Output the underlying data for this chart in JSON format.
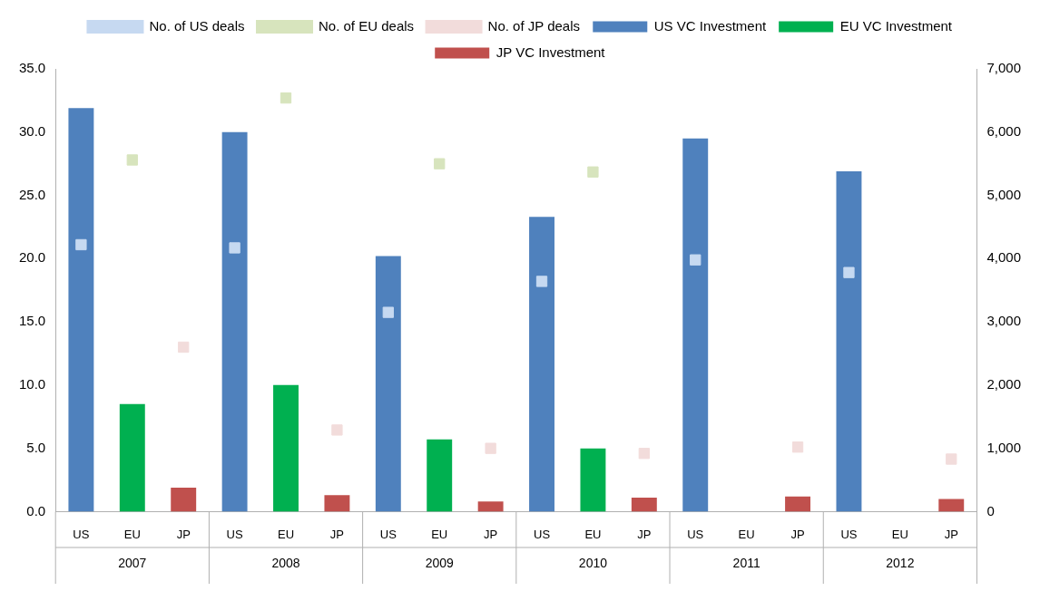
{
  "chart_data": {
    "type": "bar",
    "categories": [
      "US",
      "EU",
      "JP",
      "US",
      "EU",
      "JP",
      "US",
      "EU",
      "JP",
      "US",
      "EU",
      "JP",
      "US",
      "EU",
      "JP",
      "US",
      "EU",
      "JP"
    ],
    "series": [
      {
        "name": "US VC Investment",
        "color": "#4f81bd",
        "values": [
          31.9,
          null,
          null,
          30.0,
          null,
          null,
          20.2,
          null,
          null,
          23.3,
          null,
          null,
          29.5,
          null,
          null,
          26.9,
          null,
          null
        ]
      },
      {
        "name": "No. of US deals",
        "type": "scatter",
        "axis": "y2",
        "marker": "square",
        "color": "#c6d9f1",
        "values": [
          4220,
          null,
          null,
          4170,
          null,
          null,
          3150,
          null,
          null,
          3640,
          null,
          null,
          3980,
          null,
          null,
          3780,
          null,
          null
        ]
      },
      {
        "name": "EU VC Investment",
        "color": "#00b050",
        "values": [
          null,
          8.5,
          null,
          null,
          10.0,
          null,
          null,
          5.7,
          null,
          null,
          5.0,
          null,
          null,
          null,
          null,
          null,
          null,
          null
        ]
      },
      {
        "name": "No. of EU deals",
        "type": "scatter",
        "axis": "y2",
        "marker": "square",
        "color": "#d7e4bd",
        "values": [
          null,
          5560,
          null,
          null,
          6540,
          null,
          null,
          5500,
          null,
          null,
          5370,
          null,
          null,
          null,
          null,
          null,
          null,
          null
        ]
      },
      {
        "name": "JP VC Investment",
        "color": "#c0504d",
        "values": [
          null,
          null,
          1.9,
          null,
          null,
          1.3,
          null,
          null,
          0.8,
          null,
          null,
          1.1,
          null,
          null,
          1.2,
          null,
          null,
          1.0
        ]
      },
      {
        "name": "No. of JP deals",
        "type": "scatter",
        "axis": "y2",
        "marker": "square",
        "color": "#f2dcdb",
        "values": [
          null,
          null,
          2600,
          null,
          null,
          1290,
          null,
          null,
          1000,
          null,
          null,
          920,
          null,
          null,
          1020,
          null,
          null,
          830
        ]
      }
    ],
    "ylim": [
      0,
      35
    ],
    "yticks": [
      {
        "value": 0,
        "label": "0.0"
      },
      {
        "value": 5,
        "label": "5.0"
      },
      {
        "value": 10,
        "label": "10.0"
      },
      {
        "value": 15,
        "label": "15.0"
      },
      {
        "value": 20,
        "label": "20.0"
      },
      {
        "value": 25,
        "label": "25.0"
      },
      {
        "value": 30,
        "label": "30.0"
      },
      {
        "value": 35,
        "label": "35.0"
      }
    ],
    "y2lim": [
      0,
      7000
    ],
    "y2ticks": [
      0,
      {
        "value": 1000,
        "label": "1,000"
      },
      {
        "value": 2000,
        "label": "2,000"
      },
      {
        "value": 3000,
        "label": "3,000"
      },
      {
        "value": 4000,
        "label": "4,000"
      },
      {
        "value": 5000,
        "label": "5,000"
      },
      {
        "value": 6000,
        "label": "6,000"
      },
      {
        "value": 7000,
        "label": "7,000"
      }
    ],
    "annotations": [
      "2007",
      "2008",
      "2009",
      "2010",
      "2011",
      "2012"
    ],
    "grid": false,
    "legend": "top"
  }
}
